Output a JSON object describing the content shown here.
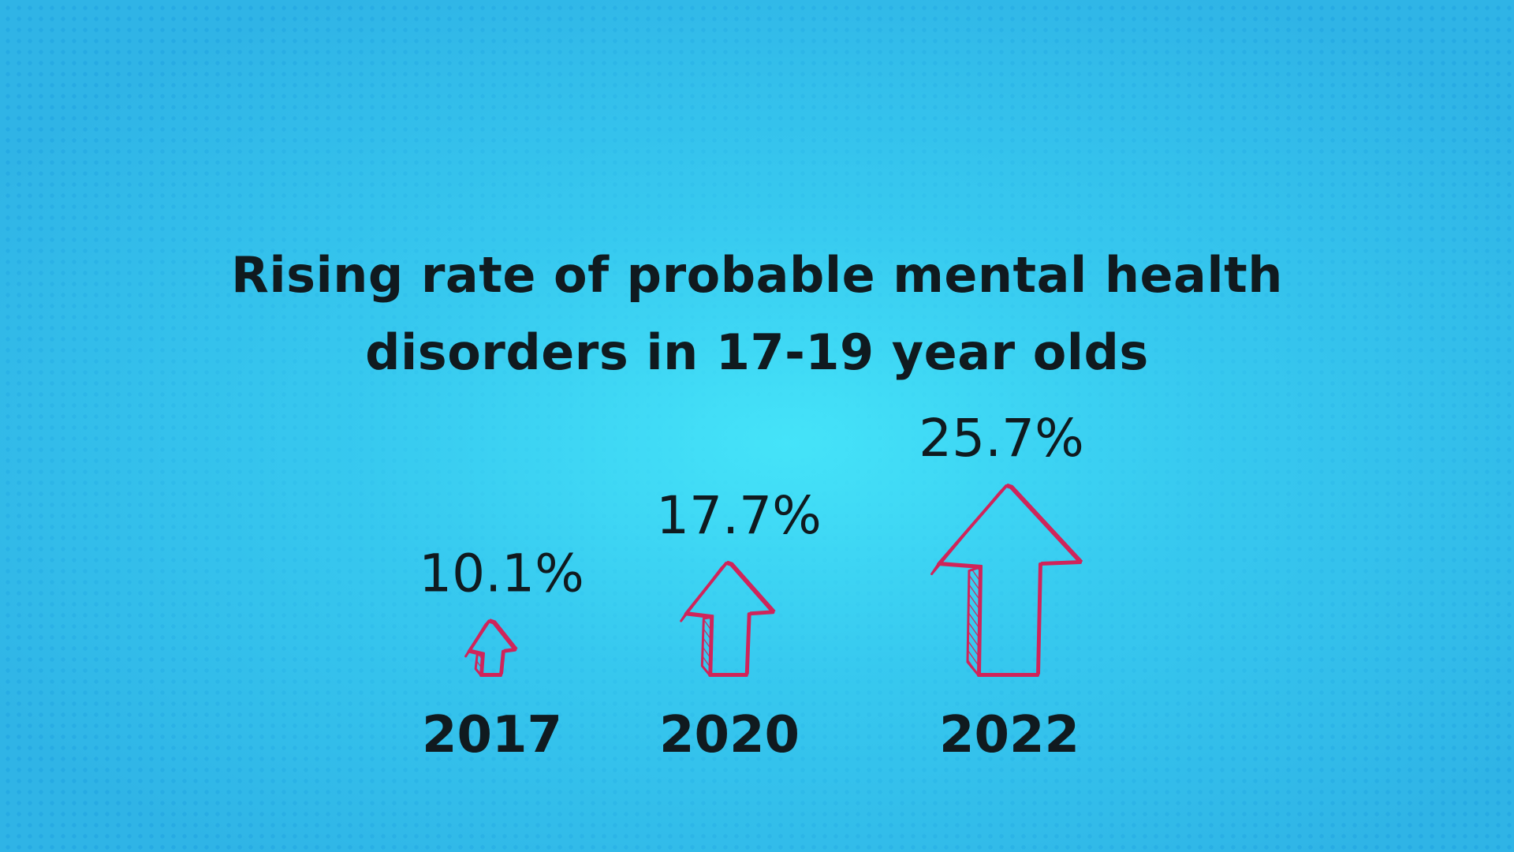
{
  "chart_data": {
    "type": "bar",
    "title": "Rising rate of probable mental health disorders in 17-19 year olds",
    "title_lines": [
      "Rising rate of probable mental health",
      "disorders in 17-19 year olds"
    ],
    "categories": [
      "2017",
      "2020",
      "2022"
    ],
    "values": [
      10.1,
      17.7,
      25.7
    ],
    "value_labels": [
      "10.1%",
      "17.7%",
      "25.7%"
    ],
    "unit": "%",
    "mark": "hand-drawn arrow",
    "grid": false,
    "legend": "none"
  },
  "colors": {
    "background": "#2fb4e6",
    "background_glow": "#46e6fa",
    "arrow": "#d0245a",
    "text": "#101a1f"
  }
}
